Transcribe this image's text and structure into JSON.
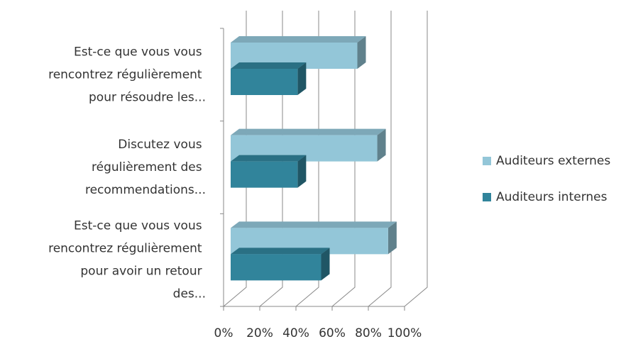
{
  "chart_data": {
    "type": "bar3d_horizontal",
    "categories": [
      "Est-ce que vous vous rencontrez régulièrement pour résoudre les...",
      "Discutez vous régulièrement des recommendations...",
      "Est-ce que vous vous rencontrez régulièrement pour avoir un retour des..."
    ],
    "series": [
      {
        "name": "Auditeurs externes",
        "color": "#93c6d8",
        "values": [
          70,
          81,
          87
        ]
      },
      {
        "name": "Auditeurs internes",
        "color": "#31849b",
        "values": [
          37,
          37,
          50
        ]
      }
    ],
    "xlim": [
      0,
      100
    ],
    "xticks": [
      {
        "value": 0,
        "label": "0%"
      },
      {
        "value": 20,
        "label": "20%"
      },
      {
        "value": 40,
        "label": "40%"
      },
      {
        "value": 60,
        "label": "60%"
      },
      {
        "value": 80,
        "label": "80%"
      },
      {
        "value": 100,
        "label": "100%"
      }
    ],
    "grid": true,
    "legend": "right"
  }
}
